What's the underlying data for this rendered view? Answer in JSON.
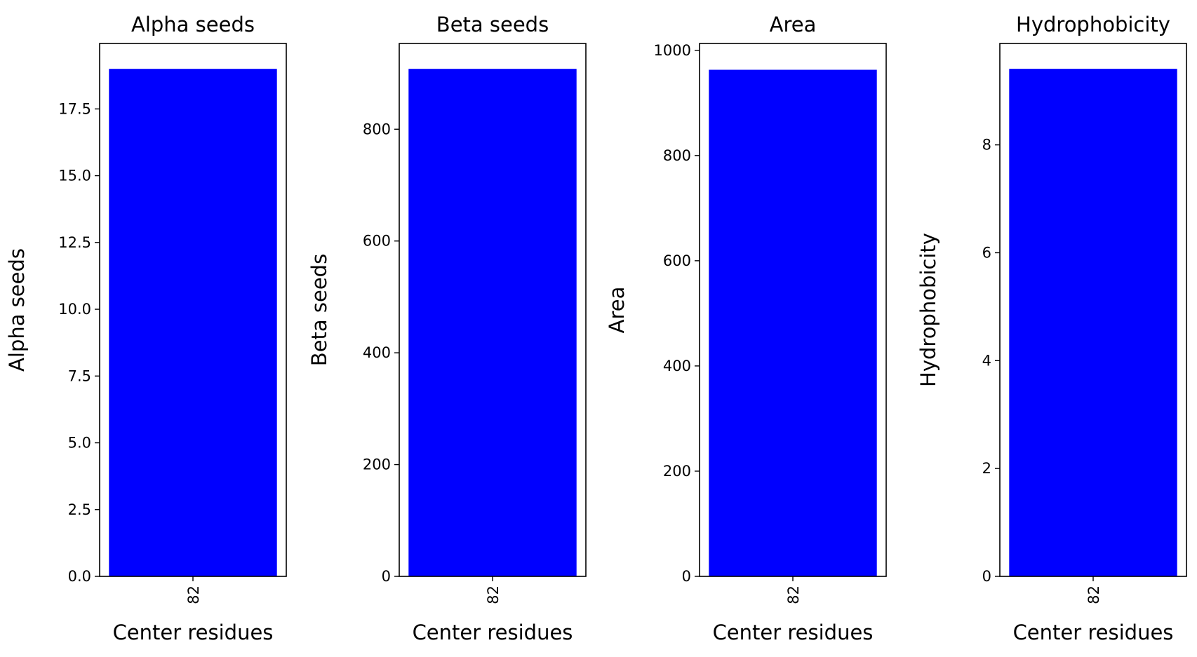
{
  "chart_data": [
    {
      "type": "bar",
      "title": "Alpha seeds",
      "xlabel": "Center residues",
      "ylabel": "Alpha seeds",
      "categories": [
        "82"
      ],
      "values": [
        19
      ],
      "ylim": [
        0,
        19.95
      ],
      "yticks": [
        0.0,
        2.5,
        5.0,
        7.5,
        10.0,
        12.5,
        15.0,
        17.5
      ],
      "ytick_labels": [
        "0.0",
        "2.5",
        "5.0",
        "7.5",
        "10.0",
        "12.5",
        "15.0",
        "17.5"
      ],
      "color": "#0000ff"
    },
    {
      "type": "bar",
      "title": "Beta seeds",
      "xlabel": "Center residues",
      "ylabel": "Beta seeds",
      "categories": [
        "82"
      ],
      "values": [
        908
      ],
      "ylim": [
        0,
        953.4
      ],
      "yticks": [
        0,
        200,
        400,
        600,
        800
      ],
      "ytick_labels": [
        "0",
        "200",
        "400",
        "600",
        "800"
      ],
      "color": "#0000ff"
    },
    {
      "type": "bar",
      "title": "Area",
      "xlabel": "Center residues",
      "ylabel": "Area",
      "categories": [
        "82"
      ],
      "values": [
        963
      ],
      "ylim": [
        0,
        1013
      ],
      "yticks": [
        0,
        200,
        400,
        600,
        800,
        1000
      ],
      "ytick_labels": [
        "0",
        "200",
        "400",
        "600",
        "800",
        "1000"
      ],
      "color": "#0000ff"
    },
    {
      "type": "bar",
      "title": "Hydrophobicity",
      "xlabel": "Center residues",
      "ylabel": "Hydrophobicity",
      "categories": [
        "82"
      ],
      "values": [
        9.41
      ],
      "ylim": [
        0,
        9.88
      ],
      "yticks": [
        0,
        2,
        4,
        6,
        8
      ],
      "ytick_labels": [
        "0",
        "2",
        "4",
        "6",
        "8"
      ],
      "color": "#0000ff"
    }
  ]
}
